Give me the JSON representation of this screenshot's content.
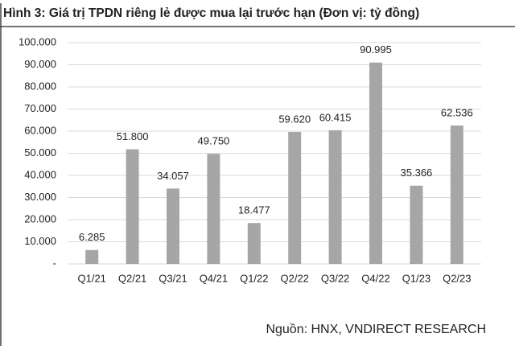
{
  "chart_data": {
    "type": "bar",
    "title": "Hình 3: Giá trị TPDN riêng lẻ được mua lại trước hạn (Đơn vị: tỷ đồng)",
    "source": "Nguồn: HNX, VNDIRECT RESEARCH",
    "categories": [
      "Q1/21",
      "Q2/21",
      "Q3/21",
      "Q4/21",
      "Q1/22",
      "Q2/22",
      "Q3/22",
      "Q4/22",
      "Q1/23",
      "Q2/23"
    ],
    "values": [
      6285,
      51800,
      34057,
      49750,
      18477,
      59620,
      60415,
      90995,
      35366,
      62536
    ],
    "value_labels": [
      "6.285",
      "51.800",
      "34.057",
      "49.750",
      "18.477",
      "59.620",
      "60.415",
      "90.995",
      "35.366",
      "62.536"
    ],
    "color": "#a6a6a6",
    "ylim": [
      0,
      100000
    ],
    "yticks": [
      {
        "value": 0,
        "label": "-"
      },
      {
        "value": 10000,
        "label": "10.000"
      },
      {
        "value": 20000,
        "label": "20.000"
      },
      {
        "value": 30000,
        "label": "30.000"
      },
      {
        "value": 40000,
        "label": "40.000"
      },
      {
        "value": 50000,
        "label": "50.000"
      },
      {
        "value": 60000,
        "label": "60.000"
      },
      {
        "value": 70000,
        "label": "70.000"
      },
      {
        "value": 80000,
        "label": "80.000"
      },
      {
        "value": 90000,
        "label": "90.000"
      },
      {
        "value": 100000,
        "label": "100.000"
      }
    ],
    "grid": true
  }
}
